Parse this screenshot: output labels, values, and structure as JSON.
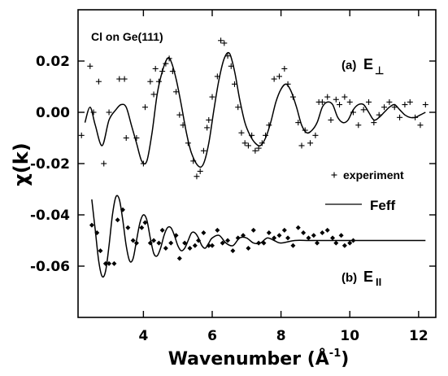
{
  "chart_data": {
    "type": "line",
    "title_annotation": "Cl on Ge(111)",
    "xlabel": "Wavenumber (Å",
    "xlabel_sup": "-1",
    "xlabel_close": ")",
    "ylabel": "χ(k)",
    "xlim": [
      2.1,
      12.5
    ],
    "ylim": [
      -0.08,
      0.04
    ],
    "xticks": [
      4,
      6,
      8,
      10,
      12
    ],
    "xtick_labels": [
      "4",
      "6",
      "8",
      "10",
      "12"
    ],
    "yticks": [
      0.02,
      0.0,
      -0.02,
      -0.04,
      -0.06
    ],
    "ytick_labels": [
      "0.02",
      "0.00",
      "-0.02",
      "-0.04",
      "-0.06"
    ],
    "grid": false,
    "legend": {
      "placement": "right",
      "entries": [
        {
          "name": "experiment",
          "marker": "+"
        },
        {
          "name": "Feff",
          "marker": "line"
        }
      ]
    },
    "panels": [
      {
        "label_prefix": "(a)",
        "label_main": "E",
        "label_sub": "⊥",
        "experiment": {
          "marker": "+",
          "x": [
            2.2,
            2.45,
            2.55,
            2.7,
            2.85,
            3.0,
            3.3,
            3.45,
            3.5,
            3.8,
            4.0,
            4.05,
            4.2,
            4.3,
            4.35,
            4.45,
            4.55,
            4.65,
            4.75,
            4.85,
            4.95,
            5.05,
            5.15,
            5.3,
            5.45,
            5.55,
            5.65,
            5.75,
            5.85,
            5.9,
            6.0,
            6.15,
            6.25,
            6.35,
            6.45,
            6.55,
            6.65,
            6.75,
            6.85,
            6.95,
            7.05,
            7.15,
            7.25,
            7.35,
            7.45,
            7.55,
            7.65,
            7.8,
            7.95,
            8.1,
            8.2,
            8.35,
            8.5,
            8.6,
            8.7,
            8.85,
            9.0,
            9.1,
            9.2,
            9.35,
            9.45,
            9.6,
            9.7,
            9.85,
            10.0,
            10.1,
            10.25,
            10.4,
            10.55,
            10.7,
            10.85,
            11.0,
            11.15,
            11.3,
            11.45,
            11.6,
            11.75,
            11.9,
            12.05,
            12.2
          ],
          "y": [
            -0.009,
            0.018,
            0.0,
            0.012,
            -0.02,
            0.0,
            0.013,
            0.013,
            -0.01,
            -0.01,
            -0.02,
            0.002,
            0.012,
            0.007,
            0.017,
            0.012,
            0.016,
            0.019,
            0.021,
            0.016,
            0.008,
            -0.001,
            -0.005,
            -0.012,
            -0.019,
            -0.025,
            -0.023,
            -0.015,
            -0.006,
            -0.003,
            0.006,
            0.014,
            0.028,
            0.027,
            0.022,
            0.018,
            0.011,
            0.002,
            -0.008,
            -0.012,
            -0.013,
            -0.009,
            -0.015,
            -0.014,
            -0.012,
            -0.009,
            -0.005,
            0.013,
            0.014,
            0.017,
            0.011,
            0.006,
            -0.004,
            -0.013,
            -0.007,
            -0.012,
            -0.009,
            0.004,
            0.004,
            0.006,
            -0.003,
            0.005,
            0.003,
            0.006,
            0.004,
            0.0,
            -0.005,
            0.001,
            0.004,
            -0.004,
            -0.001,
            0.002,
            0.004,
            0.002,
            -0.002,
            0.003,
            0.004,
            -0.002,
            -0.005,
            0.003
          ]
        },
        "feff": {
          "x": [
            2.3,
            2.45,
            2.6,
            2.8,
            3.0,
            3.2,
            3.35,
            3.5,
            3.65,
            3.8,
            3.95,
            4.1,
            4.25,
            4.4,
            4.55,
            4.7,
            4.8,
            4.95,
            5.1,
            5.25,
            5.4,
            5.6,
            5.75,
            5.9,
            6.05,
            6.2,
            6.35,
            6.5,
            6.65,
            6.8,
            6.95,
            7.1,
            7.25,
            7.4,
            7.55,
            7.7,
            7.85,
            8.0,
            8.15,
            8.3,
            8.45,
            8.6,
            8.75,
            8.9,
            9.05,
            9.2,
            9.35,
            9.5,
            9.65,
            9.8,
            9.95,
            10.1,
            10.25,
            10.4,
            10.55,
            10.7,
            10.85,
            11.0,
            11.15,
            11.3,
            11.45,
            11.6,
            11.75,
            11.9,
            12.05,
            12.2
          ],
          "y": [
            -0.004,
            0.002,
            -0.005,
            -0.013,
            -0.003,
            0.001,
            0.003,
            0.002,
            -0.005,
            -0.012,
            -0.019,
            -0.019,
            -0.008,
            0.007,
            0.016,
            0.021,
            0.02,
            0.013,
            0.003,
            -0.008,
            -0.016,
            -0.021,
            -0.02,
            -0.012,
            0.001,
            0.013,
            0.021,
            0.023,
            0.016,
            0.005,
            -0.004,
            -0.009,
            -0.012,
            -0.013,
            -0.01,
            -0.004,
            0.004,
            0.009,
            0.011,
            0.008,
            0.002,
            -0.005,
            -0.008,
            -0.007,
            -0.004,
            0.002,
            0.004,
            0.003,
            -0.002,
            -0.004,
            -0.003,
            0.001,
            0.003,
            0.003,
            0.0,
            -0.003,
            -0.002,
            0.0,
            0.002,
            0.003,
            0.001,
            -0.001,
            -0.002,
            -0.002,
            -0.001,
            0.0
          ]
        }
      },
      {
        "label_prefix": "(b)",
        "label_main": "E",
        "label_sub": "II",
        "experiment": {
          "marker": "diamond",
          "x": [
            2.5,
            2.65,
            2.75,
            2.9,
            3.0,
            3.15,
            3.25,
            3.4,
            3.55,
            3.7,
            3.8,
            3.95,
            4.05,
            4.2,
            4.3,
            4.45,
            4.55,
            4.65,
            4.8,
            4.95,
            5.05,
            5.2,
            5.35,
            5.5,
            5.6,
            5.75,
            5.9,
            6.0,
            6.15,
            6.3,
            6.45,
            6.6,
            6.75,
            6.9,
            7.05,
            7.2,
            7.35,
            7.5,
            7.65,
            7.8,
            7.95,
            8.1,
            8.2,
            8.35,
            8.5,
            8.65,
            8.8,
            8.95,
            9.05,
            9.2,
            9.35,
            9.5,
            9.6,
            9.75,
            9.85,
            10.0,
            10.1
          ],
          "y": [
            -0.044,
            -0.047,
            -0.054,
            -0.059,
            -0.059,
            -0.059,
            -0.042,
            -0.038,
            -0.045,
            -0.05,
            -0.051,
            -0.045,
            -0.043,
            -0.051,
            -0.05,
            -0.051,
            -0.046,
            -0.053,
            -0.051,
            -0.048,
            -0.057,
            -0.051,
            -0.053,
            -0.052,
            -0.05,
            -0.047,
            -0.052,
            -0.052,
            -0.046,
            -0.051,
            -0.05,
            -0.054,
            -0.049,
            -0.048,
            -0.053,
            -0.046,
            -0.051,
            -0.051,
            -0.047,
            -0.049,
            -0.048,
            -0.046,
            -0.049,
            -0.052,
            -0.045,
            -0.047,
            -0.049,
            -0.048,
            -0.051,
            -0.047,
            -0.046,
            -0.049,
            -0.051,
            -0.048,
            -0.052,
            -0.051,
            -0.05
          ]
        },
        "feff": {
          "x": [
            2.5,
            2.6,
            2.7,
            2.8,
            2.9,
            3.0,
            3.1,
            3.2,
            3.3,
            3.4,
            3.5,
            3.6,
            3.7,
            3.8,
            3.9,
            4.0,
            4.1,
            4.2,
            4.3,
            4.4,
            4.5,
            4.6,
            4.7,
            4.8,
            4.9,
            5.0,
            5.1,
            5.2,
            5.3,
            5.4,
            5.5,
            5.6,
            5.7,
            5.8,
            5.9,
            6.0,
            6.2,
            6.4,
            6.6,
            6.8,
            7.0,
            7.2,
            7.4,
            7.6,
            7.8,
            8.0,
            8.4,
            8.8,
            9.2,
            9.6,
            10.0,
            10.5,
            11.0,
            11.5,
            12.0,
            12.2
          ],
          "y": [
            -0.034,
            -0.046,
            -0.058,
            -0.064,
            -0.062,
            -0.052,
            -0.04,
            -0.033,
            -0.034,
            -0.042,
            -0.052,
            -0.058,
            -0.057,
            -0.05,
            -0.043,
            -0.04,
            -0.042,
            -0.049,
            -0.055,
            -0.056,
            -0.053,
            -0.048,
            -0.045,
            -0.045,
            -0.048,
            -0.052,
            -0.054,
            -0.053,
            -0.05,
            -0.047,
            -0.047,
            -0.049,
            -0.052,
            -0.053,
            -0.051,
            -0.049,
            -0.048,
            -0.051,
            -0.052,
            -0.049,
            -0.049,
            -0.051,
            -0.051,
            -0.049,
            -0.05,
            -0.051,
            -0.05,
            -0.05,
            -0.05,
            -0.05,
            -0.05,
            -0.05,
            -0.05,
            -0.05,
            -0.05,
            -0.05
          ]
        }
      }
    ]
  }
}
